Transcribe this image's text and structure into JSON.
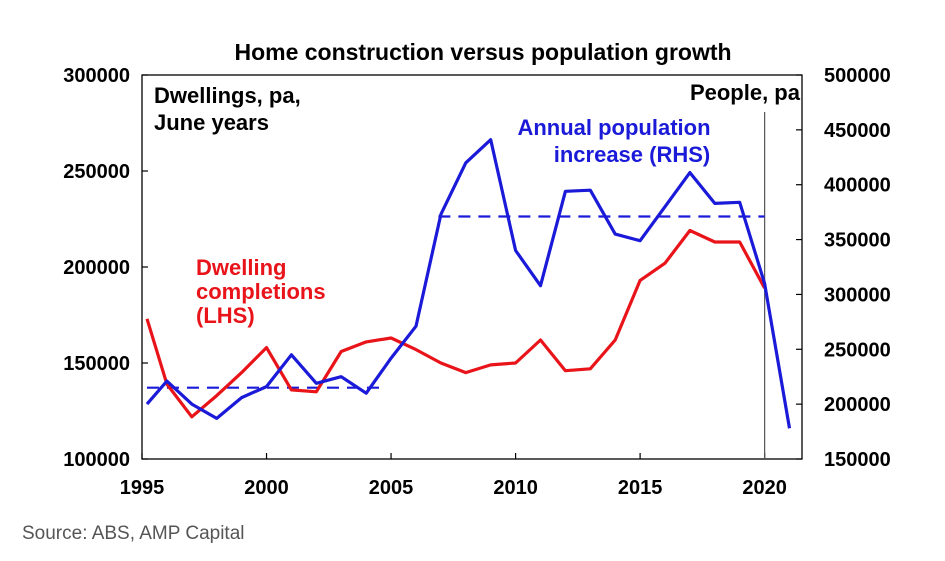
{
  "chart_data": {
    "type": "line",
    "title": "Home construction versus population growth",
    "x": [
      1995,
      1996,
      1997,
      1998,
      1999,
      2000,
      2001,
      2002,
      2003,
      2004,
      2005,
      2006,
      2007,
      2008,
      2009,
      2010,
      2011,
      2012,
      2013,
      2014,
      2015,
      2016,
      2017,
      2018,
      2019,
      2020,
      2021
    ],
    "xticks": [
      "1995",
      "2000",
      "2005",
      "2010",
      "2015",
      "2020"
    ],
    "xlim": [
      1995,
      2021.5
    ],
    "left_axis": {
      "label": "Dwellings, pa, June years",
      "ylim": [
        100000,
        300000
      ],
      "ticks": [
        "100000",
        "150000",
        "200000",
        "250000",
        "300000"
      ]
    },
    "right_axis": {
      "label": "People, pa",
      "ylim": [
        150000,
        500000
      ],
      "ticks": [
        "150000",
        "200000",
        "250000",
        "300000",
        "350000",
        "400000",
        "450000",
        "500000"
      ]
    },
    "series": [
      {
        "name": "Dwelling completions (LHS)",
        "axis": "left",
        "color": "#e8141a",
        "x": [
          1995.2,
          1996,
          1997,
          1998,
          1999,
          2000,
          2001,
          2002,
          2003,
          2004,
          2005,
          2006,
          2007,
          2008,
          2009,
          2010,
          2011,
          2012,
          2013,
          2014,
          2015,
          2016,
          2017,
          2018,
          2019,
          2020
        ],
        "values": [
          173000,
          139000,
          122000,
          133000,
          145000,
          158000,
          136000,
          135000,
          156000,
          161000,
          163000,
          157000,
          150000,
          145000,
          149000,
          150000,
          162000,
          146000,
          147000,
          162000,
          193000,
          202000,
          219000,
          213000,
          213000,
          189000
        ]
      },
      {
        "name": "Annual population increase (RHS)",
        "axis": "right",
        "color": "#1a1ad8",
        "x": [
          1995.2,
          1996,
          1997,
          1998,
          1999,
          2000,
          2001,
          2002,
          2003,
          2004,
          2005,
          2006,
          2007,
          2008,
          2009,
          2010,
          2011,
          2012,
          2013,
          2014,
          2015,
          2016,
          2017,
          2018,
          2019,
          2020,
          2021
        ],
        "values": [
          200000,
          221000,
          200000,
          187000,
          206000,
          216000,
          245000,
          219000,
          225000,
          210000,
          242000,
          271000,
          373000,
          420000,
          441000,
          340000,
          308000,
          394000,
          395000,
          355000,
          349000,
          380000,
          411000,
          383000,
          384000,
          310000,
          178000
        ]
      }
    ],
    "reference_lines": [
      {
        "axis": "right",
        "style": "dashed",
        "color": "#1a1ad8",
        "value": 215000,
        "x_from": 1995.2,
        "x_to": 2004.6
      },
      {
        "axis": "right",
        "style": "dashed",
        "color": "#1a1ad8",
        "value": 371000,
        "x_from": 2006.9,
        "x_to": 2020
      }
    ],
    "vertical_marker": {
      "x": 2020,
      "color": "#555555"
    },
    "annotations": {
      "dwellings": [
        "Dwelling",
        "completions",
        "(LHS)"
      ],
      "population": [
        "Annual population",
        "increase (RHS)"
      ]
    },
    "grid": false
  },
  "source": "Source: ABS, AMP Capital"
}
